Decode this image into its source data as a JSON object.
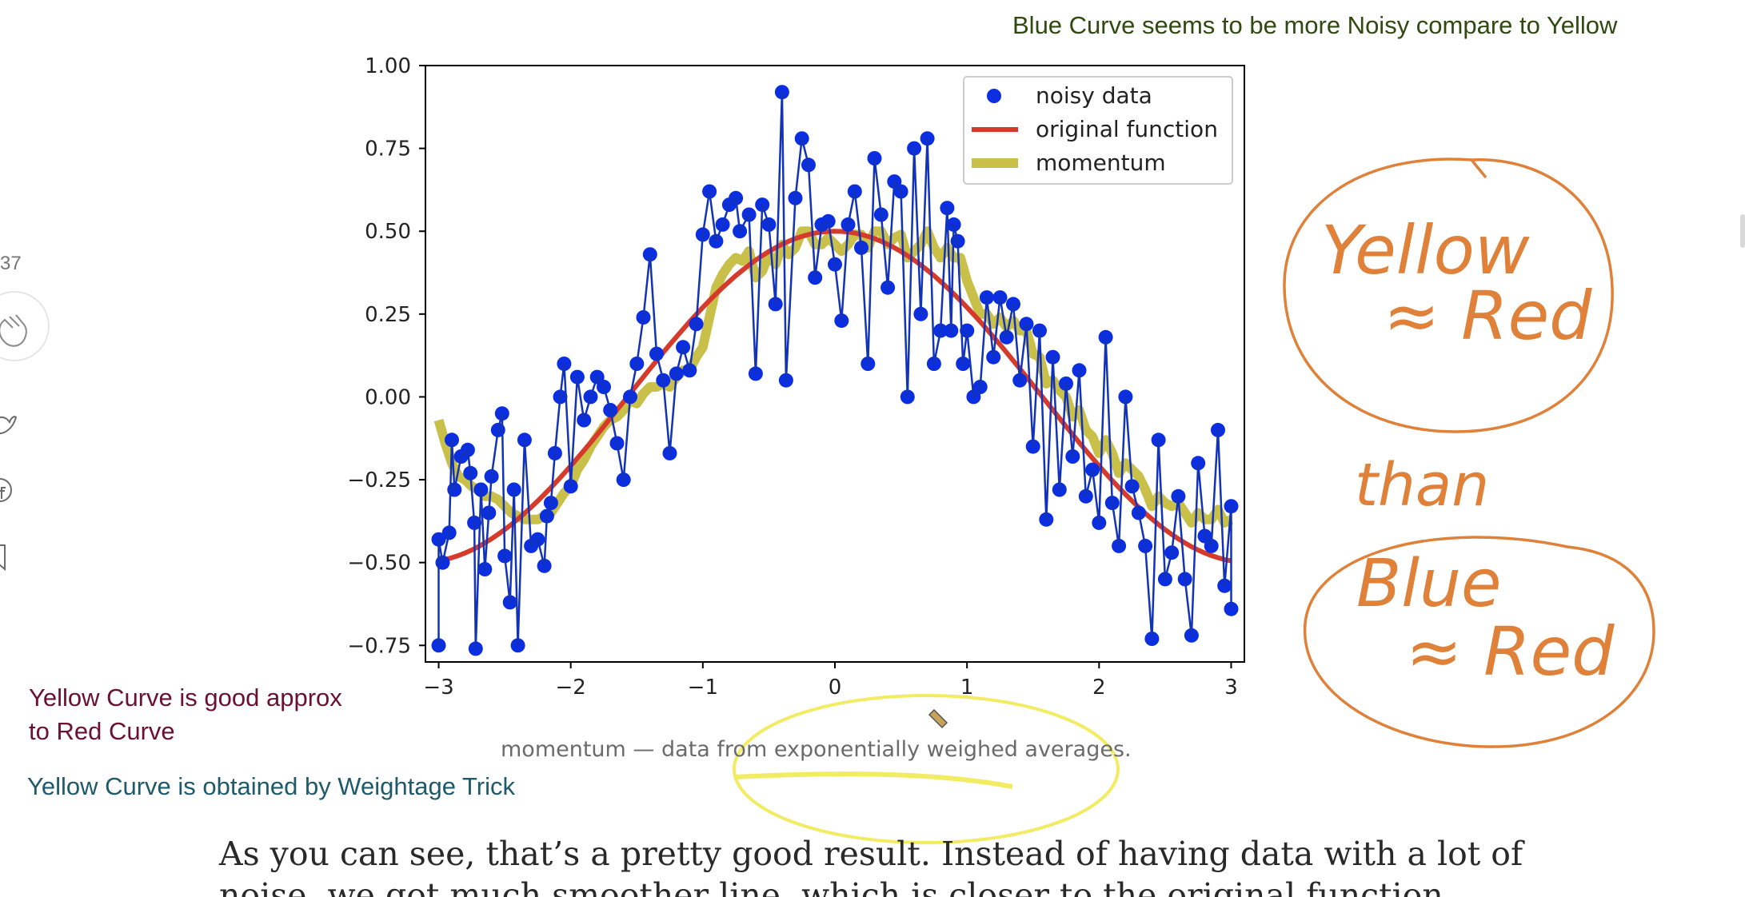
{
  "annotations": {
    "top": "Blue Curve seems to be more Noisy compare to Yellow",
    "left_line1": "Yellow Curve is good approx",
    "left_line2": "to Red Curve",
    "left_weightage": "Yellow Curve is obtained by Weightage Trick",
    "handwritten_yellow": "Yellow",
    "handwritten_approx_red": "≈ Red",
    "handwritten_than": "than",
    "handwritten_blue": "Blue",
    "handwritten_approx_red2": "≈ Red"
  },
  "caption": "momentum — data from exponentially weighed averages.",
  "article": {
    "line1": "As you can see, that’s a pretty good result. Instead of having data with a lot of",
    "line2": "noise, we got much smoother line, which is closer to the original function."
  },
  "sidebar": {
    "clap_count": "37"
  },
  "colors": {
    "noisy_data": "#0a2ee0",
    "original_function": "#d63a2a",
    "momentum": "#c9c04a",
    "blue_curve": "#1233b8",
    "annotation_orange": "#e0813a",
    "annotation_yellow": "#f2ec62"
  },
  "chart_data": {
    "type": "scatter",
    "xlim": [
      -3.1,
      3.1
    ],
    "ylim": [
      -0.8,
      1.0
    ],
    "xticks": [
      -3,
      -2,
      -1,
      0,
      1,
      2,
      3
    ],
    "xtick_labels": [
      "−3",
      "−2",
      "−1",
      "0",
      "1",
      "2",
      "3"
    ],
    "yticks": [
      1.0,
      0.75,
      0.5,
      0.25,
      0.0,
      -0.25,
      -0.5,
      -0.75
    ],
    "ytick_labels": [
      "1.00",
      "0.75",
      "0.50",
      "0.25",
      "0.00",
      "−0.25",
      "−0.50",
      "−0.75"
    ],
    "legend_position": "upper right",
    "legend": [
      "noisy data",
      "original function",
      "momentum"
    ],
    "series": [
      {
        "name": "noisy data",
        "kind": "scatter",
        "points": [
          [
            -3.0,
            -0.75
          ],
          [
            -3.0,
            -0.43
          ],
          [
            -2.97,
            -0.5
          ],
          [
            -2.92,
            -0.41
          ],
          [
            -2.9,
            -0.13
          ],
          [
            -2.88,
            -0.28
          ],
          [
            -2.83,
            -0.18
          ],
          [
            -2.78,
            -0.16
          ],
          [
            -2.76,
            -0.23
          ],
          [
            -2.73,
            -0.38
          ],
          [
            -2.72,
            -0.76
          ],
          [
            -2.68,
            -0.28
          ],
          [
            -2.65,
            -0.52
          ],
          [
            -2.62,
            -0.35
          ],
          [
            -2.6,
            -0.24
          ],
          [
            -2.55,
            -0.1
          ],
          [
            -2.52,
            -0.05
          ],
          [
            -2.5,
            -0.48
          ],
          [
            -2.46,
            -0.62
          ],
          [
            -2.43,
            -0.28
          ],
          [
            -2.4,
            -0.75
          ],
          [
            -2.35,
            -0.13
          ],
          [
            -2.3,
            -0.45
          ],
          [
            -2.25,
            -0.43
          ],
          [
            -2.2,
            -0.51
          ],
          [
            -2.18,
            -0.36
          ],
          [
            -2.15,
            -0.32
          ],
          [
            -2.12,
            -0.17
          ],
          [
            -2.08,
            0.0
          ],
          [
            -2.05,
            0.1
          ],
          [
            -2.0,
            -0.27
          ],
          [
            -1.95,
            0.06
          ],
          [
            -1.9,
            -0.07
          ],
          [
            -1.85,
            0.0
          ],
          [
            -1.8,
            0.06
          ],
          [
            -1.75,
            0.03
          ],
          [
            -1.7,
            -0.04
          ],
          [
            -1.65,
            -0.14
          ],
          [
            -1.6,
            -0.25
          ],
          [
            -1.55,
            0.0
          ],
          [
            -1.5,
            0.1
          ],
          [
            -1.45,
            0.24
          ],
          [
            -1.4,
            0.43
          ],
          [
            -1.35,
            0.13
          ],
          [
            -1.3,
            0.05
          ],
          [
            -1.25,
            -0.17
          ],
          [
            -1.2,
            0.07
          ],
          [
            -1.15,
            0.15
          ],
          [
            -1.1,
            0.08
          ],
          [
            -1.05,
            0.22
          ],
          [
            -1.0,
            0.49
          ],
          [
            -0.95,
            0.62
          ],
          [
            -0.9,
            0.47
          ],
          [
            -0.85,
            0.52
          ],
          [
            -0.8,
            0.58
          ],
          [
            -0.75,
            0.6
          ],
          [
            -0.72,
            0.5
          ],
          [
            -0.65,
            0.55
          ],
          [
            -0.6,
            0.07
          ],
          [
            -0.55,
            0.58
          ],
          [
            -0.5,
            0.52
          ],
          [
            -0.45,
            0.28
          ],
          [
            -0.4,
            0.92
          ],
          [
            -0.37,
            0.05
          ],
          [
            -0.3,
            0.6
          ],
          [
            -0.25,
            0.78
          ],
          [
            -0.2,
            0.7
          ],
          [
            -0.15,
            0.36
          ],
          [
            -0.1,
            0.52
          ],
          [
            -0.05,
            0.53
          ],
          [
            0.0,
            0.4
          ],
          [
            0.05,
            0.23
          ],
          [
            0.1,
            0.52
          ],
          [
            0.15,
            0.62
          ],
          [
            0.2,
            0.45
          ],
          [
            0.25,
            0.1
          ],
          [
            0.3,
            0.72
          ],
          [
            0.35,
            0.55
          ],
          [
            0.4,
            0.33
          ],
          [
            0.45,
            0.65
          ],
          [
            0.5,
            0.62
          ],
          [
            0.55,
            0.0
          ],
          [
            0.6,
            0.75
          ],
          [
            0.65,
            0.25
          ],
          [
            0.7,
            0.78
          ],
          [
            0.75,
            0.1
          ],
          [
            0.8,
            0.2
          ],
          [
            0.85,
            0.57
          ],
          [
            0.88,
            0.2
          ],
          [
            0.9,
            0.52
          ],
          [
            0.93,
            0.47
          ],
          [
            0.97,
            0.1
          ],
          [
            1.0,
            0.2
          ],
          [
            1.05,
            0.0
          ],
          [
            1.1,
            0.03
          ],
          [
            1.15,
            0.3
          ],
          [
            1.2,
            0.12
          ],
          [
            1.25,
            0.3
          ],
          [
            1.3,
            0.18
          ],
          [
            1.35,
            0.28
          ],
          [
            1.4,
            0.05
          ],
          [
            1.45,
            0.22
          ],
          [
            1.5,
            -0.15
          ],
          [
            1.55,
            0.2
          ],
          [
            1.6,
            -0.37
          ],
          [
            1.65,
            0.12
          ],
          [
            1.7,
            -0.28
          ],
          [
            1.75,
            0.04
          ],
          [
            1.8,
            -0.18
          ],
          [
            1.85,
            0.08
          ],
          [
            1.9,
            -0.3
          ],
          [
            1.95,
            -0.22
          ],
          [
            2.0,
            -0.38
          ],
          [
            2.05,
            0.18
          ],
          [
            2.1,
            -0.32
          ],
          [
            2.15,
            -0.45
          ],
          [
            2.2,
            0.0
          ],
          [
            2.25,
            -0.27
          ],
          [
            2.3,
            -0.35
          ],
          [
            2.35,
            -0.45
          ],
          [
            2.4,
            -0.73
          ],
          [
            2.45,
            -0.13
          ],
          [
            2.5,
            -0.55
          ],
          [
            2.55,
            -0.47
          ],
          [
            2.6,
            -0.3
          ],
          [
            2.65,
            -0.55
          ],
          [
            2.7,
            -0.72
          ],
          [
            2.75,
            -0.2
          ],
          [
            2.8,
            -0.42
          ],
          [
            2.85,
            -0.45
          ],
          [
            2.9,
            -0.1
          ],
          [
            2.95,
            -0.57
          ],
          [
            3.0,
            -0.33
          ],
          [
            3.0,
            -0.64
          ]
        ]
      },
      {
        "name": "original function",
        "kind": "line",
        "formula": "0.5*cos(x)",
        "domain": [
          -3,
          3
        ]
      },
      {
        "name": "momentum",
        "kind": "line",
        "points": [
          [
            -3.0,
            -0.07
          ],
          [
            -2.95,
            -0.14
          ],
          [
            -2.9,
            -0.2
          ],
          [
            -2.85,
            -0.24
          ],
          [
            -2.8,
            -0.25
          ],
          [
            -2.75,
            -0.27
          ],
          [
            -2.7,
            -0.28
          ],
          [
            -2.65,
            -0.3
          ],
          [
            -2.6,
            -0.3
          ],
          [
            -2.55,
            -0.31
          ],
          [
            -2.5,
            -0.33
          ],
          [
            -2.45,
            -0.35
          ],
          [
            -2.4,
            -0.36
          ],
          [
            -2.35,
            -0.37
          ],
          [
            -2.3,
            -0.37
          ],
          [
            -2.25,
            -0.37
          ],
          [
            -2.2,
            -0.36
          ],
          [
            -2.15,
            -0.35
          ],
          [
            -2.1,
            -0.32
          ],
          [
            -2.05,
            -0.29
          ],
          [
            -2.0,
            -0.27
          ],
          [
            -1.95,
            -0.22
          ],
          [
            -1.9,
            -0.19
          ],
          [
            -1.85,
            -0.15
          ],
          [
            -1.8,
            -0.12
          ],
          [
            -1.75,
            -0.09
          ],
          [
            -1.7,
            -0.07
          ],
          [
            -1.65,
            -0.06
          ],
          [
            -1.6,
            -0.04
          ],
          [
            -1.55,
            -0.01
          ],
          [
            -1.5,
            -0.02
          ],
          [
            -1.45,
            0.01
          ],
          [
            -1.4,
            0.03
          ],
          [
            -1.35,
            0.03
          ],
          [
            -1.3,
            0.04
          ],
          [
            -1.25,
            0.03
          ],
          [
            -1.2,
            0.06
          ],
          [
            -1.15,
            0.08
          ],
          [
            -1.1,
            0.08
          ],
          [
            -1.05,
            0.12
          ],
          [
            -1.0,
            0.15
          ],
          [
            -0.95,
            0.24
          ],
          [
            -0.9,
            0.33
          ],
          [
            -0.85,
            0.37
          ],
          [
            -0.8,
            0.4
          ],
          [
            -0.75,
            0.42
          ],
          [
            -0.7,
            0.41
          ],
          [
            -0.65,
            0.44
          ],
          [
            -0.6,
            0.36
          ],
          [
            -0.55,
            0.38
          ],
          [
            -0.5,
            0.43
          ],
          [
            -0.45,
            0.4
          ],
          [
            -0.4,
            0.46
          ],
          [
            -0.35,
            0.43
          ],
          [
            -0.3,
            0.45
          ],
          [
            -0.25,
            0.5
          ],
          [
            -0.2,
            0.5
          ],
          [
            -0.15,
            0.46
          ],
          [
            -0.1,
            0.46
          ],
          [
            -0.05,
            0.48
          ],
          [
            0.0,
            0.46
          ],
          [
            0.05,
            0.44
          ],
          [
            0.1,
            0.46
          ],
          [
            0.15,
            0.49
          ],
          [
            0.2,
            0.49
          ],
          [
            0.25,
            0.45
          ],
          [
            0.3,
            0.5
          ],
          [
            0.35,
            0.5
          ],
          [
            0.4,
            0.46
          ],
          [
            0.45,
            0.48
          ],
          [
            0.5,
            0.49
          ],
          [
            0.55,
            0.42
          ],
          [
            0.6,
            0.44
          ],
          [
            0.65,
            0.46
          ],
          [
            0.7,
            0.5
          ],
          [
            0.75,
            0.45
          ],
          [
            0.8,
            0.42
          ],
          [
            0.85,
            0.45
          ],
          [
            0.9,
            0.42
          ],
          [
            0.95,
            0.42
          ],
          [
            1.0,
            0.35
          ],
          [
            1.05,
            0.3
          ],
          [
            1.1,
            0.25
          ],
          [
            1.15,
            0.25
          ],
          [
            1.2,
            0.22
          ],
          [
            1.25,
            0.24
          ],
          [
            1.3,
            0.21
          ],
          [
            1.35,
            0.23
          ],
          [
            1.4,
            0.2
          ],
          [
            1.45,
            0.2
          ],
          [
            1.5,
            0.13
          ],
          [
            1.55,
            0.12
          ],
          [
            1.6,
            0.04
          ],
          [
            1.65,
            0.05
          ],
          [
            1.7,
            0.02
          ],
          [
            1.75,
            0.0
          ],
          [
            1.8,
            -0.06
          ],
          [
            1.85,
            -0.04
          ],
          [
            1.9,
            -0.1
          ],
          [
            1.95,
            -0.12
          ],
          [
            2.0,
            -0.17
          ],
          [
            2.05,
            -0.13
          ],
          [
            2.1,
            -0.17
          ],
          [
            2.15,
            -0.23
          ],
          [
            2.2,
            -0.2
          ],
          [
            2.25,
            -0.22
          ],
          [
            2.3,
            -0.24
          ],
          [
            2.35,
            -0.28
          ],
          [
            2.4,
            -0.33
          ],
          [
            2.45,
            -0.3
          ],
          [
            2.5,
            -0.32
          ],
          [
            2.55,
            -0.33
          ],
          [
            2.6,
            -0.32
          ],
          [
            2.65,
            -0.35
          ],
          [
            2.7,
            -0.38
          ],
          [
            2.75,
            -0.35
          ],
          [
            2.8,
            -0.37
          ],
          [
            2.85,
            -0.37
          ],
          [
            2.9,
            -0.34
          ],
          [
            2.95,
            -0.38
          ],
          [
            3.0,
            -0.37
          ]
        ]
      }
    ]
  }
}
